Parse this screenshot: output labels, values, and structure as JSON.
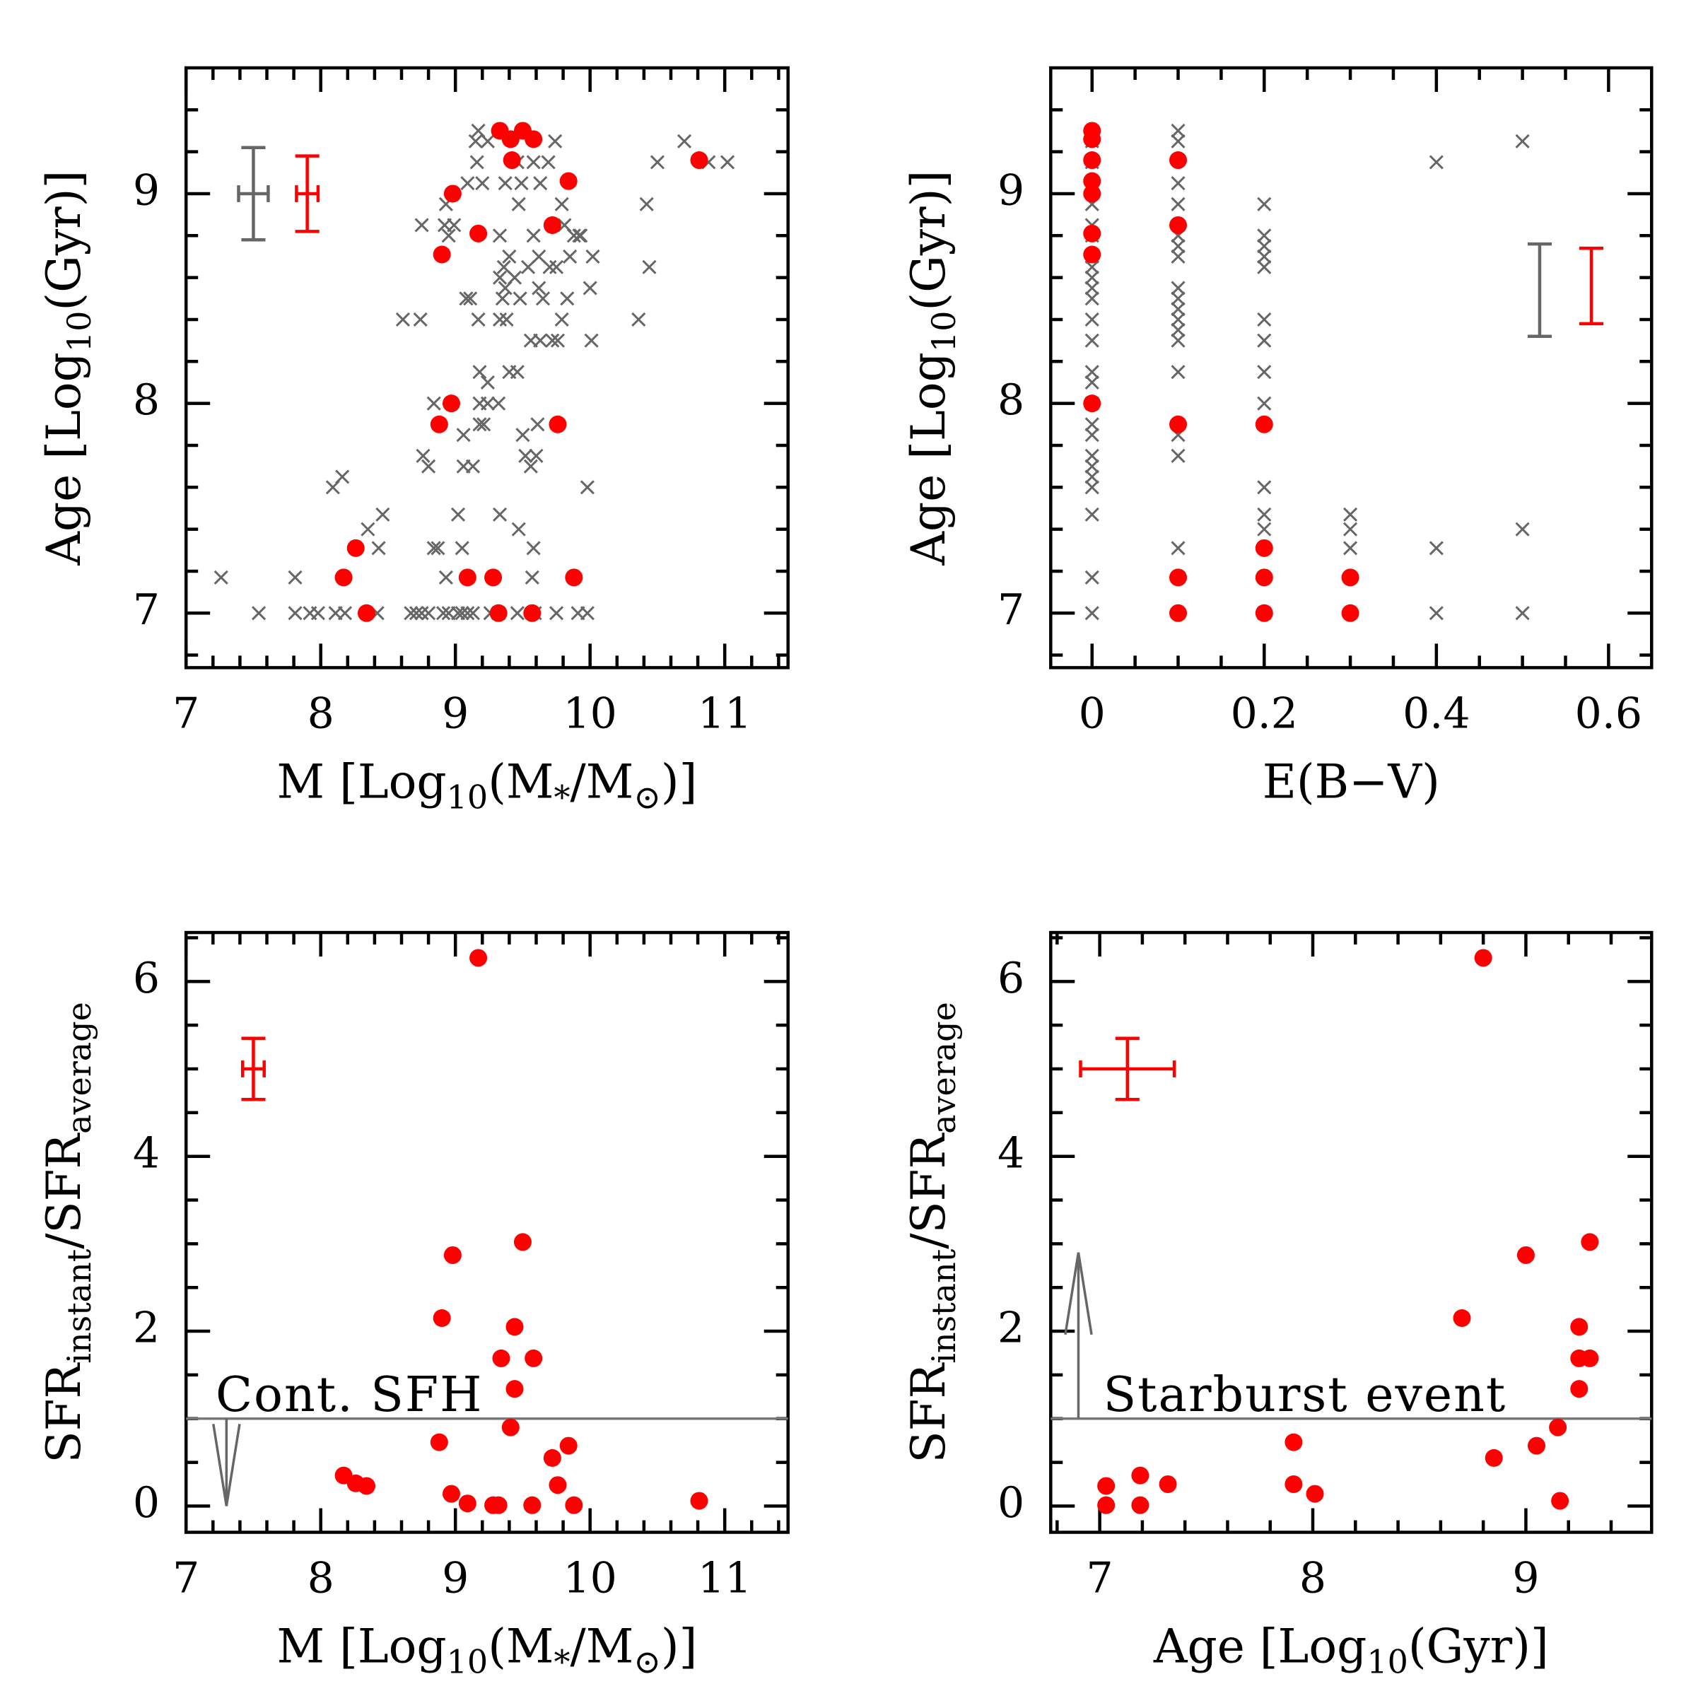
{
  "chart_data": [
    {
      "type": "scatter",
      "xlabel": [
        {
          "text": "M [Log"
        },
        {
          "text": "10",
          "sub": true
        },
        {
          "text": "(M"
        },
        {
          "text": "*",
          "sub": true
        },
        {
          "text": "/M"
        },
        {
          "text": "⊙",
          "sub": true
        },
        {
          "text": ")]"
        }
      ],
      "ylabel": [
        {
          "text": "Age [Log"
        },
        {
          "text": "10",
          "sub": true
        },
        {
          "text": "(Gyr)]"
        }
      ],
      "xlim": [
        7,
        11.47
      ],
      "ylim": [
        6.74,
        9.6
      ],
      "xticks": [
        7,
        8,
        9,
        10,
        11
      ],
      "yticks": [
        7,
        8,
        9
      ],
      "xminor": [
        7.2,
        7.4,
        7.6,
        7.8,
        8.2,
        8.4,
        8.6,
        8.8,
        9.2,
        9.4,
        9.6,
        9.8,
        10.2,
        10.4,
        10.6,
        10.8,
        11.2,
        11.4
      ],
      "yminor": [
        6.8,
        7.2,
        7.4,
        7.6,
        7.8,
        8.2,
        8.4,
        8.6,
        8.8,
        9.2,
        9.4
      ],
      "series": [
        {
          "color": "#666666",
          "marker": "x",
          "x": [
            7.54,
            7.81,
            7.92,
            7.98,
            8.11,
            8.18,
            8.42,
            8.67,
            8.71,
            8.75,
            8.8,
            8.91,
            8.95,
            9.02,
            9.05,
            9.09,
            9.13,
            9.26,
            9.32,
            9.46,
            9.59,
            9.75,
            9.91,
            9.98,
            7.26,
            7.81,
            8.93,
            9.57,
            8.43,
            8.84,
            8.87,
            9.05,
            9.58,
            8.35,
            9.47,
            8.46,
            9.02,
            9.33,
            8.09,
            9.98,
            8.16,
            8.8,
            9.06,
            9.13,
            9.56,
            8.76,
            9.52,
            9.6,
            9.06,
            9.5,
            9.18,
            9.21,
            9.61,
            8.84,
            9.18,
            9.24,
            9.32,
            9.24,
            9.18,
            9.4,
            9.46,
            9.56,
            9.63,
            9.72,
            9.76,
            10.01,
            8.61,
            8.74,
            9.17,
            9.33,
            9.38,
            9.79,
            10.36,
            9.08,
            9.11,
            9.35,
            9.48,
            9.65,
            9.83,
            9.37,
            9.62,
            10.0,
            9.33,
            9.44,
            9.36,
            9.54,
            9.7,
            9.75,
            10.44,
            9.4,
            9.62,
            9.85,
            10.02,
            8.95,
            9.33,
            9.58,
            9.88,
            9.92,
            9.93,
            8.75,
            8.92,
            8.99,
            9.81,
            8.93,
            9.47,
            9.79,
            10.42,
            9.09,
            9.2,
            9.37,
            9.49,
            9.63,
            9.16,
            9.46,
            9.58,
            9.69,
            10.5,
            10.88,
            11.02,
            9.15,
            9.24,
            9.74,
            10.7,
            9.17
          ],
          "values": [
            7,
            7,
            7,
            7,
            7,
            7,
            7,
            7,
            7,
            7,
            7,
            7,
            7,
            7,
            7,
            7,
            7,
            7,
            7,
            7,
            7,
            7,
            7,
            7,
            7.17,
            7.17,
            7.17,
            7.17,
            7.31,
            7.31,
            7.31,
            7.31,
            7.31,
            7.4,
            7.4,
            7.47,
            7.47,
            7.47,
            7.6,
            7.6,
            7.65,
            7.7,
            7.7,
            7.7,
            7.7,
            7.75,
            7.75,
            7.75,
            7.85,
            7.85,
            7.9,
            7.9,
            7.9,
            8,
            8,
            8,
            8,
            8.1,
            8.15,
            8.15,
            8.15,
            8.3,
            8.3,
            8.3,
            8.3,
            8.3,
            8.4,
            8.4,
            8.4,
            8.4,
            8.4,
            8.4,
            8.4,
            8.5,
            8.5,
            8.5,
            8.5,
            8.5,
            8.5,
            8.55,
            8.55,
            8.55,
            8.6,
            8.6,
            8.65,
            8.65,
            8.65,
            8.65,
            8.65,
            8.7,
            8.7,
            8.7,
            8.7,
            8.8,
            8.8,
            8.8,
            8.8,
            8.8,
            8.8,
            8.85,
            8.85,
            8.85,
            8.85,
            8.95,
            8.95,
            8.95,
            8.95,
            9.05,
            9.05,
            9.05,
            9.05,
            9.05,
            9.15,
            9.15,
            9.15,
            9.15,
            9.15,
            9.15,
            9.15,
            9.25,
            9.25,
            9.25,
            9.25,
            9.3
          ]
        },
        {
          "color": "#ff0000",
          "marker": "o",
          "x": [
            8.17,
            8.26,
            8.34,
            8.88,
            8.9,
            8.97,
            8.98,
            9.17,
            9.09,
            9.28,
            9.32,
            9.33,
            9.41,
            9.42,
            9.5,
            9.58,
            9.57,
            9.72,
            9.76,
            9.84,
            9.88,
            10.81
          ],
          "values": [
            7.17,
            7.31,
            7.0,
            7.9,
            8.71,
            8.0,
            9.0,
            8.81,
            7.17,
            7.17,
            7.0,
            9.3,
            9.26,
            9.16,
            9.3,
            9.26,
            7.0,
            8.85,
            7.9,
            9.06,
            7.17,
            9.16
          ]
        }
      ],
      "error_bars": [
        {
          "color": "#666666",
          "x": 7.5,
          "y": 9.0,
          "xerr": 0.11,
          "yerr": 0.22
        },
        {
          "color": "#ff0000",
          "x": 7.9,
          "y": 9.0,
          "xerr": 0.08,
          "yerr": 0.18
        }
      ]
    },
    {
      "type": "scatter",
      "xlabel": [
        {
          "text": "E(B−V)"
        }
      ],
      "ylabel": [
        {
          "text": "Age [Log"
        },
        {
          "text": "10",
          "sub": true
        },
        {
          "text": "(Gyr)]"
        }
      ],
      "xlim": [
        -0.048,
        0.65
      ],
      "ylim": [
        6.74,
        9.6
      ],
      "xticks": [
        0,
        0.2,
        0.4,
        0.6
      ],
      "yticks": [
        7,
        8,
        9
      ],
      "xminor": [
        0.05,
        0.1,
        0.15,
        0.25,
        0.3,
        0.35,
        0.45,
        0.5,
        0.55
      ],
      "yminor": [
        6.8,
        7.2,
        7.4,
        7.6,
        7.8,
        8.2,
        8.4,
        8.6,
        8.8,
        9.2,
        9.4
      ],
      "series": [
        {
          "color": "#666666",
          "marker": "x",
          "x": [
            0,
            0,
            0,
            0,
            0,
            0,
            0,
            0,
            0,
            0,
            0,
            0,
            0,
            0,
            0,
            0,
            0,
            0,
            0,
            0,
            0,
            0,
            0,
            0,
            0,
            0.1,
            0.1,
            0.1,
            0.1,
            0.1,
            0.1,
            0.1,
            0.1,
            0.1,
            0.1,
            0.1,
            0.1,
            0.1,
            0.1,
            0.1,
            0.1,
            0.1,
            0.2,
            0.2,
            0.2,
            0.2,
            0.2,
            0.2,
            0.2,
            0.2,
            0.2,
            0.2,
            0.2,
            0.2,
            0.2,
            0.3,
            0.3,
            0.3,
            0.4,
            0.4,
            0.4,
            0.5,
            0.5,
            0.5
          ],
          "values": [
            7.0,
            7.17,
            7.47,
            7.6,
            7.65,
            7.7,
            7.75,
            7.85,
            7.9,
            8.0,
            8.1,
            8.15,
            8.3,
            8.4,
            8.5,
            8.55,
            8.6,
            8.65,
            8.7,
            8.8,
            8.85,
            8.95,
            9.05,
            9.15,
            9.25,
            7.31,
            7.75,
            7.85,
            8.15,
            8.3,
            8.35,
            8.4,
            8.45,
            8.5,
            8.55,
            8.7,
            8.75,
            8.8,
            8.95,
            9.05,
            9.25,
            9.3,
            7.0,
            7.4,
            7.47,
            7.6,
            8.0,
            8.15,
            8.3,
            8.4,
            8.65,
            8.7,
            8.75,
            8.8,
            8.95,
            7.31,
            7.4,
            7.47,
            7.0,
            7.31,
            9.15,
            7.0,
            7.4,
            9.25
          ]
        },
        {
          "color": "#ff0000",
          "marker": "o",
          "x": [
            0,
            0,
            0,
            0,
            0,
            0,
            0,
            0,
            0.1,
            0.1,
            0.1,
            0.1,
            0.1,
            0.2,
            0.2,
            0.2,
            0.2,
            0.3,
            0.3
          ],
          "values": [
            9.3,
            9.26,
            9.16,
            9.06,
            9.0,
            8.81,
            8.71,
            8.0,
            9.16,
            8.85,
            7.9,
            7.17,
            7.0,
            7.9,
            7.31,
            7.17,
            7.0,
            7.17,
            7.0
          ]
        }
      ],
      "error_bars": [
        {
          "color": "#666666",
          "x": 0.52,
          "y": 8.54,
          "yerr": 0.22
        },
        {
          "color": "#ff0000",
          "x": 0.58,
          "y": 8.56,
          "yerr": 0.18
        }
      ]
    },
    {
      "type": "scatter",
      "xlabel": [
        {
          "text": "M [Log"
        },
        {
          "text": "10",
          "sub": true
        },
        {
          "text": "(M"
        },
        {
          "text": "*",
          "sub": true
        },
        {
          "text": "/M"
        },
        {
          "text": "⊙",
          "sub": true
        },
        {
          "text": ")]"
        }
      ],
      "ylabel": [
        {
          "text": "SFR"
        },
        {
          "text": "instant",
          "sub": true
        },
        {
          "text": "/SFR"
        },
        {
          "text": "average",
          "sub": true
        }
      ],
      "xlim": [
        7,
        11.47
      ],
      "ylim": [
        -0.3,
        6.56
      ],
      "xticks": [
        7,
        8,
        9,
        10,
        11
      ],
      "yticks": [
        0,
        2,
        4,
        6
      ],
      "xminor": [
        7.2,
        7.4,
        7.6,
        7.8,
        8.2,
        8.4,
        8.6,
        8.8,
        9.2,
        9.4,
        9.6,
        9.8,
        10.2,
        10.4,
        10.6,
        10.8,
        11.2,
        11.4
      ],
      "yminor": [
        0.5,
        1,
        1.5,
        2.5,
        3,
        3.5,
        4.5,
        5,
        5.5,
        6.5
      ],
      "series": [
        {
          "color": "#ff0000",
          "marker": "o",
          "x": [
            8.17,
            8.26,
            8.34,
            8.88,
            8.9,
            8.97,
            8.98,
            9.17,
            9.09,
            9.28,
            9.32,
            9.34,
            9.41,
            9.44,
            9.44,
            9.5,
            9.58,
            9.57,
            9.72,
            9.76,
            9.84,
            9.88,
            10.81
          ],
          "values": [
            0.35,
            0.26,
            0.23,
            0.73,
            2.15,
            0.14,
            2.87,
            6.27,
            0.03,
            0.01,
            0.01,
            1.69,
            0.9,
            1.34,
            2.05,
            3.02,
            1.69,
            0.01,
            0.55,
            0.24,
            0.69,
            0.01,
            0.06
          ]
        }
      ],
      "error_bars": [
        {
          "color": "#ff0000",
          "x": 7.5,
          "y": 5.0,
          "xerr": 0.08,
          "yerr": 0.35
        }
      ],
      "hline": 1,
      "arrow": {
        "x": 7.3,
        "from": 1,
        "to": 0
      },
      "annotation": "Cont. SFH"
    },
    {
      "type": "scatter",
      "xlabel": [
        {
          "text": "Age [Log"
        },
        {
          "text": "10",
          "sub": true
        },
        {
          "text": "(Gyr)]"
        }
      ],
      "ylabel": [
        {
          "text": "SFR"
        },
        {
          "text": "instant",
          "sub": true
        },
        {
          "text": "/SFR"
        },
        {
          "text": "average",
          "sub": true
        }
      ],
      "xlim": [
        6.77,
        9.59
      ],
      "ylim": [
        -0.3,
        6.56
      ],
      "xticks": [
        7,
        8,
        9
      ],
      "yticks": [
        0,
        2,
        4,
        6
      ],
      "xminor": [
        6.8,
        7.2,
        7.4,
        7.6,
        7.8,
        8.2,
        8.4,
        8.6,
        8.8,
        9.2,
        9.4
      ],
      "yminor": [
        0.5,
        1,
        1.5,
        2.5,
        3,
        3.5,
        4.5,
        5,
        5.5,
        6.5
      ],
      "series": [
        {
          "color": "#ff0000",
          "marker": "o",
          "x": [
            7.03,
            7.03,
            7.19,
            7.19,
            7.32,
            7.91,
            7.91,
            8.01,
            8.7,
            8.8,
            8.85,
            9.0,
            9.05,
            9.15,
            9.16,
            9.25,
            9.25,
            9.25,
            9.3,
            9.3
          ],
          "values": [
            0.23,
            0.01,
            0.35,
            0.01,
            0.25,
            0.73,
            0.25,
            0.14,
            2.15,
            6.27,
            0.55,
            2.87,
            0.69,
            0.9,
            0.06,
            1.34,
            2.05,
            1.69,
            1.69,
            3.02
          ]
        }
      ],
      "error_bars": [
        {
          "color": "#ff0000",
          "x": 7.13,
          "y": 5.0,
          "xerr": 0.22,
          "yerr": 0.35
        }
      ],
      "hline": 1,
      "arrow": {
        "x": 6.9,
        "from": 1,
        "to": 2.9
      },
      "annotation": "Starburst event"
    }
  ]
}
